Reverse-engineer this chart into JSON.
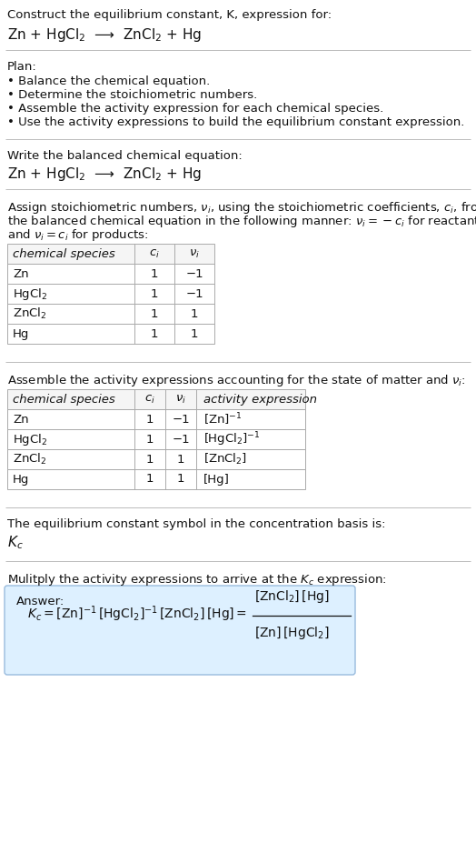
{
  "title_line1": "Construct the equilibrium constant, K, expression for:",
  "title_line2": "Zn + HgCl$_2$  ⟶  ZnCl$_2$ + Hg",
  "plan_header": "Plan:",
  "plan_bullets": [
    "• Balance the chemical equation.",
    "• Determine the stoichiometric numbers.",
    "• Assemble the activity expression for each chemical species.",
    "• Use the activity expressions to build the equilibrium constant expression."
  ],
  "balanced_header": "Write the balanced chemical equation:",
  "balanced_eq": "Zn + HgCl$_2$  ⟶  ZnCl$_2$ + Hg",
  "stoich_intro1": "Assign stoichiometric numbers, $\\nu_i$, using the stoichiometric coefficients, $c_i$, from",
  "stoich_intro2": "the balanced chemical equation in the following manner: $\\nu_i = -c_i$ for reactants",
  "stoich_intro3": "and $\\nu_i = c_i$ for products:",
  "table1_headers": [
    "chemical species",
    "$c_i$",
    "$\\nu_i$"
  ],
  "table1_rows": [
    [
      "Zn",
      "1",
      "−1"
    ],
    [
      "HgCl$_2$",
      "1",
      "−1"
    ],
    [
      "ZnCl$_2$",
      "1",
      "1"
    ],
    [
      "Hg",
      "1",
      "1"
    ]
  ],
  "activity_intro": "Assemble the activity expressions accounting for the state of matter and $\\nu_i$:",
  "table2_headers": [
    "chemical species",
    "$c_i$",
    "$\\nu_i$",
    "activity expression"
  ],
  "table2_rows": [
    [
      "Zn",
      "1",
      "−1",
      "[Zn]$^{-1}$"
    ],
    [
      "HgCl$_2$",
      "1",
      "−1",
      "[HgCl$_2$]$^{-1}$"
    ],
    [
      "ZnCl$_2$",
      "1",
      "1",
      "[ZnCl$_2$]"
    ],
    [
      "Hg",
      "1",
      "1",
      "[Hg]"
    ]
  ],
  "kc_intro": "The equilibrium constant symbol in the concentration basis is:",
  "kc_symbol": "$K_c$",
  "multiply_intro": "Mulitply the activity expressions to arrive at the $K_c$ expression:",
  "answer_label": "Answer:",
  "bg_color": "#ffffff",
  "table_border_color": "#aaaaaa",
  "answer_box_color": "#ddf0ff",
  "answer_box_border": "#99bbdd",
  "font_size_body": 9.5,
  "font_size_table": 9.5,
  "font_size_eq": 10.0,
  "line_color": "#bbbbbb"
}
